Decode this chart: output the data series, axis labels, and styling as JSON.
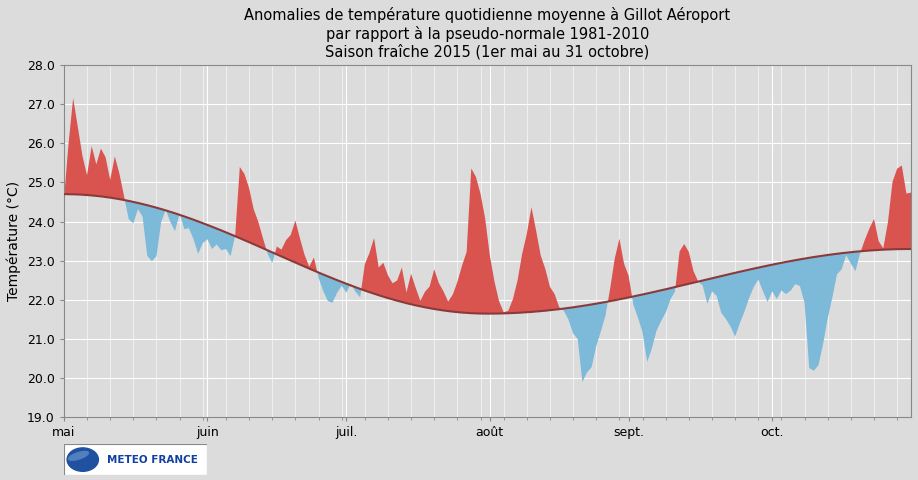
{
  "title_line1": "Anomalies de température quotidienne moyenne à Gillot Aéroport",
  "title_line2": "par rapport à la pseudo-normale 1981-2010",
  "title_line3": "Saison fraîche 2015 (1er mai au 31 octobre)",
  "ylabel": "Température (°C)",
  "ylim": [
    19.0,
    28.0
  ],
  "yticks": [
    19.0,
    20.0,
    21.0,
    22.0,
    23.0,
    24.0,
    25.0,
    26.0,
    27.0,
    28.0
  ],
  "n_days": 184,
  "color_above": "#D9534F",
  "color_below": "#7DB9D9",
  "bg_color": "#DCDCDC",
  "grid_color": "#FFFFFF",
  "logo_text": "METEO FRANCE",
  "title_fontsize": 10.5,
  "axis_fontsize": 9,
  "month_positions": [
    0,
    31,
    61,
    92,
    122,
    153
  ],
  "month_labels": [
    "mai",
    "juin",
    "juil.",
    "août",
    "sept.",
    "oct."
  ]
}
